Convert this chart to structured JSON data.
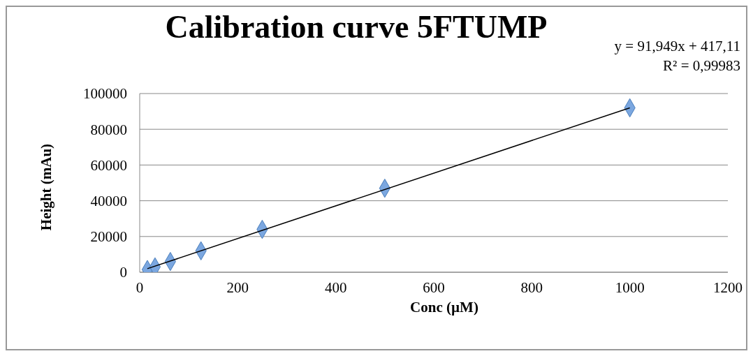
{
  "chart_data": {
    "type": "scatter",
    "title": "Calibration curve 5FTUMP",
    "xlabel": "Conc (µM)",
    "ylabel": "Height (mAu)",
    "annotations": [
      "y = 91,949x + 417,11",
      "R² = 0,99983"
    ],
    "series": [
      {
        "x": [
          15.625,
          31.25,
          62.5,
          125,
          250,
          500,
          1000
        ],
        "values": [
          1500,
          3000,
          6000,
          12000,
          24000,
          47000,
          92000
        ],
        "color": "#7ba7e0"
      },
      {
        "type": "line",
        "x": [
          15.625,
          1000
        ],
        "values": [
          2000,
          92000
        ],
        "color": "#000000",
        "marker": "none"
      }
    ],
    "xlim": [
      0,
      1200
    ],
    "xticks": [
      0,
      200,
      400,
      600,
      800,
      1000,
      1200
    ],
    "ylim": [
      0,
      100000
    ],
    "yticks": [
      0,
      20000,
      40000,
      60000,
      80000,
      100000
    ],
    "grid": "y",
    "marker": "diamond"
  }
}
